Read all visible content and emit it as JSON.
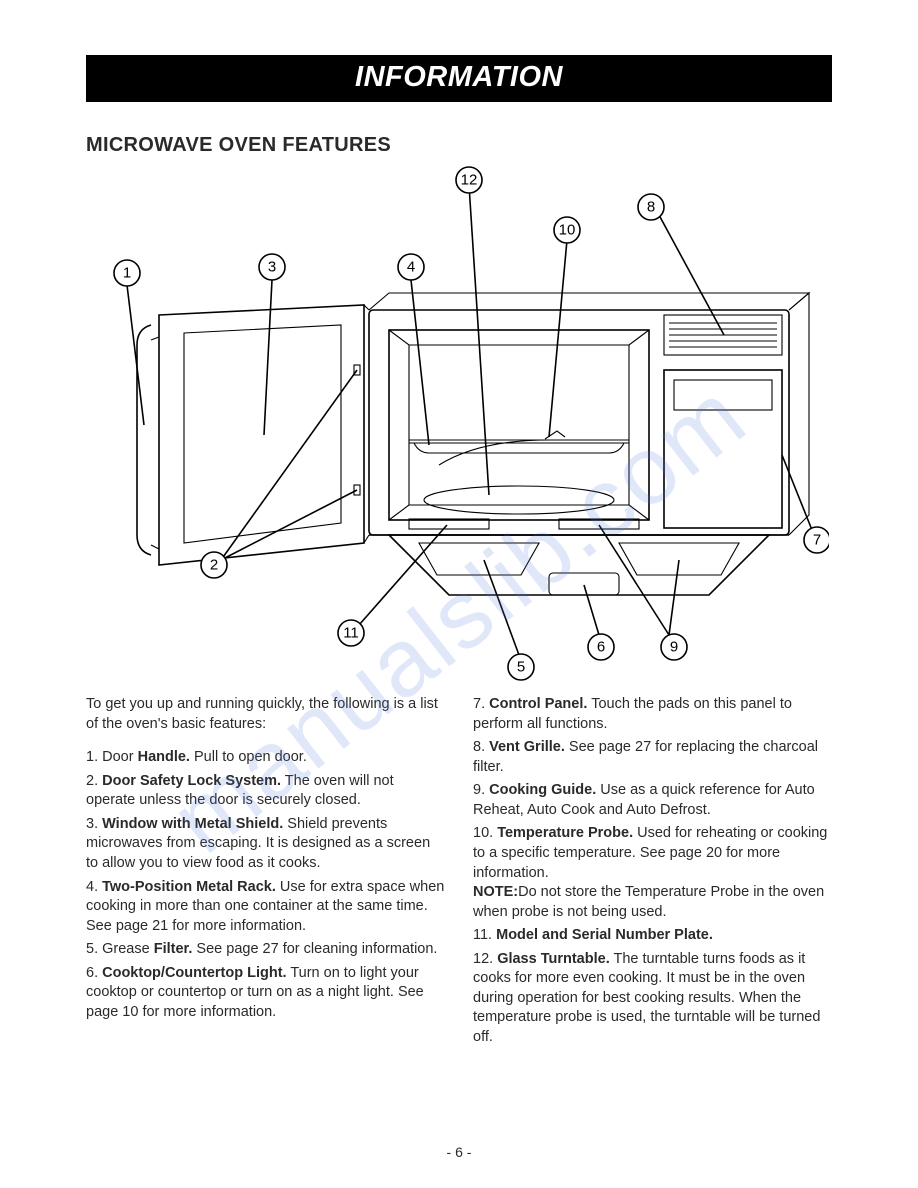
{
  "banner": "INFORMATION",
  "section_title": "MICROWAVE OVEN FEATURES",
  "intro": "To get you up and running quickly, the following is a list of the oven's basic features:",
  "page_number": "- 6 -",
  "watermark": "manualslib.com",
  "callouts": {
    "c1": "1",
    "c2": "2",
    "c3": "3",
    "c4": "4",
    "c5": "5",
    "c6": "6",
    "c7": "7",
    "c8": "8",
    "c9": "9",
    "c10": "10",
    "c11": "11",
    "c12": "12"
  },
  "features_left": [
    {
      "num": "1. ",
      "title_prefix": "Door ",
      "title_bold": "Handle.",
      "body": " Pull to open door."
    },
    {
      "num": "2. ",
      "title_bold": "Door Safety Lock System.",
      "body": " The oven will not operate unless the door is securely closed."
    },
    {
      "num": "3. ",
      "title_bold": "Window with Metal Shield.",
      "body": " Shield prevents microwaves from escaping. It is designed as a screen to allow you to view food as it cooks."
    },
    {
      "num": "4. ",
      "title_bold": "Two-Position Metal Rack.",
      "body": " Use for extra space when cooking in more than one container at the same time. See page 21 for more information."
    },
    {
      "num": "5. ",
      "title_prefix": "Grease ",
      "title_bold": "Filter.",
      "body": "  See page 27 for cleaning information."
    },
    {
      "num": "6. ",
      "title_bold": "Cooktop/Countertop Light.",
      "body": " Turn on to light your cooktop or countertop or turn on as a night light. See page 10 for more information."
    }
  ],
  "features_right": [
    {
      "num": "7. ",
      "title_bold": "Control Panel.",
      "body": " Touch the pads on this panel to perform all functions."
    },
    {
      "num": "8. ",
      "title_bold": "Vent Grille.",
      "body": " See page 27 for replacing the charcoal filter."
    },
    {
      "num": "9. ",
      "title_bold": "Cooking Guide.",
      "body": " Use as a quick reference for Auto Reheat, Auto Cook and Auto Defrost."
    },
    {
      "num": "10. ",
      "title_bold": "Temperature Probe.",
      "body": " Used for reheating or cooking to a specific temperature. See page 20 for more information.",
      "note_label": "NOTE:",
      "note": "Do not store the Temperature Probe in the oven when probe is not being used."
    },
    {
      "num": "11. ",
      "title_bold": "Model and Serial Number Plate.",
      "body": ""
    },
    {
      "num": "12. ",
      "title_bold": "Glass Turntable.",
      "body": " The turntable turns foods as it cooks for more even cooking. It must be in the oven during operation for best cooking results. When the temperature probe is used, the turntable will be turned off."
    }
  ],
  "colors": {
    "banner_bg": "#000000",
    "banner_fg": "#ffffff",
    "text": "#2a2a2a",
    "watermark": "rgba(80,120,220,0.18)"
  }
}
